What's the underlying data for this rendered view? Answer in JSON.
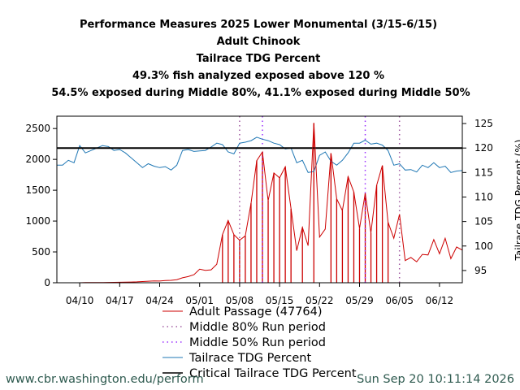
{
  "titles": [
    "Performance Measures 2025 Lower Monumental (3/15-6/15)",
    "Adult Chinook",
    "Tailrace TDG Percent",
    "49.3% fish analyzed exposed above 120 %",
    "54.5% exposed during Middle 80%, 41.1% exposed during Middle 50%"
  ],
  "footer": {
    "url": "www.cbr.washington.edu/perform",
    "timestamp": "Sun Sep 20 10:11:14 2026"
  },
  "legend": [
    {
      "label": "Adult Passage (47764)",
      "style": "solid",
      "color": "#cc0000"
    },
    {
      "label": "Middle 80% Run period",
      "style": "dotted",
      "color": "#a05aa0"
    },
    {
      "label": "Middle 50% Run period",
      "style": "dotted",
      "color": "#9b30ff"
    },
    {
      "label": "Tailrace TDG Percent",
      "style": "solid",
      "color": "#1f77b4"
    },
    {
      "label": "Critical Tailrace TDG Percent",
      "style": "solid",
      "color": "#000000"
    }
  ],
  "chart_data": {
    "type": "line",
    "x_axis": {
      "type": "date",
      "range": [
        "2025-04-06",
        "2025-06-16"
      ],
      "tick_labels": [
        "04/10",
        "04/17",
        "04/24",
        "05/01",
        "05/08",
        "05/15",
        "05/22",
        "05/29",
        "06/05",
        "06/12"
      ],
      "tick_dates": [
        "2025-04-10",
        "2025-04-17",
        "2025-04-24",
        "2025-05-01",
        "2025-05-08",
        "2025-05-15",
        "2025-05-22",
        "2025-05-29",
        "2025-06-05",
        "2025-06-12"
      ]
    },
    "y_left": {
      "ylim": [
        0,
        2700
      ],
      "ticks": [
        0,
        500,
        1000,
        1500,
        2000,
        2500
      ]
    },
    "y_right": {
      "label": "Tailrace TDG Percent (%)",
      "ylim": [
        92.5,
        126.5
      ],
      "ticks": [
        95,
        100,
        105,
        110,
        115,
        120,
        125
      ]
    },
    "series": [
      {
        "name": "Adult Passage (47764)",
        "axis": "left",
        "color": "#cc0000",
        "points": [
          [
            "2025-04-06",
            0
          ],
          [
            "2025-04-07",
            0
          ],
          [
            "2025-04-08",
            0
          ],
          [
            "2025-04-09",
            0
          ],
          [
            "2025-04-10",
            0
          ],
          [
            "2025-04-11",
            2
          ],
          [
            "2025-04-12",
            2
          ],
          [
            "2025-04-13",
            3
          ],
          [
            "2025-04-14",
            3
          ],
          [
            "2025-04-15",
            5
          ],
          [
            "2025-04-16",
            6
          ],
          [
            "2025-04-17",
            8
          ],
          [
            "2025-04-18",
            10
          ],
          [
            "2025-04-19",
            12
          ],
          [
            "2025-04-20",
            15
          ],
          [
            "2025-04-21",
            20
          ],
          [
            "2025-04-22",
            25
          ],
          [
            "2025-04-23",
            30
          ],
          [
            "2025-04-24",
            28
          ],
          [
            "2025-04-25",
            35
          ],
          [
            "2025-04-26",
            40
          ],
          [
            "2025-04-27",
            50
          ],
          [
            "2025-04-28",
            80
          ],
          [
            "2025-04-29",
            100
          ],
          [
            "2025-04-30",
            130
          ],
          [
            "2025-05-01",
            220
          ],
          [
            "2025-05-02",
            200
          ],
          [
            "2025-05-03",
            210
          ],
          [
            "2025-05-04",
            300
          ],
          [
            "2025-05-05",
            780
          ],
          [
            "2025-05-06",
            1010
          ],
          [
            "2025-05-07",
            780
          ],
          [
            "2025-05-08",
            690
          ],
          [
            "2025-05-09",
            760
          ],
          [
            "2025-05-10",
            1290
          ],
          [
            "2025-05-11",
            1980
          ],
          [
            "2025-05-12",
            2120
          ],
          [
            "2025-05-13",
            1330
          ],
          [
            "2025-05-14",
            1780
          ],
          [
            "2025-05-15",
            1700
          ],
          [
            "2025-05-16",
            1880
          ],
          [
            "2025-05-17",
            1200
          ],
          [
            "2025-05-18",
            520
          ],
          [
            "2025-05-19",
            900
          ],
          [
            "2025-05-20",
            600
          ],
          [
            "2025-05-21",
            2590
          ],
          [
            "2025-05-22",
            740
          ],
          [
            "2025-05-23",
            870
          ],
          [
            "2025-05-24",
            2100
          ],
          [
            "2025-05-25",
            1360
          ],
          [
            "2025-05-26",
            1170
          ],
          [
            "2025-05-27",
            1720
          ],
          [
            "2025-05-28",
            1470
          ],
          [
            "2025-05-29",
            880
          ],
          [
            "2025-05-30",
            1450
          ],
          [
            "2025-05-31",
            810
          ],
          [
            "2025-06-01",
            1580
          ],
          [
            "2025-06-02",
            1900
          ],
          [
            "2025-06-03",
            980
          ],
          [
            "2025-06-04",
            720
          ],
          [
            "2025-06-05",
            1110
          ],
          [
            "2025-06-06",
            360
          ],
          [
            "2025-06-07",
            410
          ],
          [
            "2025-06-08",
            340
          ],
          [
            "2025-06-09",
            460
          ],
          [
            "2025-06-10",
            450
          ],
          [
            "2025-06-11",
            700
          ],
          [
            "2025-06-12",
            470
          ],
          [
            "2025-06-13",
            720
          ],
          [
            "2025-06-14",
            390
          ],
          [
            "2025-06-15",
            580
          ],
          [
            "2025-06-16",
            530
          ]
        ]
      },
      {
        "name": "Tailrace TDG Percent",
        "axis": "right",
        "color": "#1f77b4",
        "points": [
          [
            "2025-04-06",
            116.5
          ],
          [
            "2025-04-07",
            116.5
          ],
          [
            "2025-04-08",
            117.5
          ],
          [
            "2025-04-09",
            117.0
          ],
          [
            "2025-04-10",
            120.5
          ],
          [
            "2025-04-11",
            119.0
          ],
          [
            "2025-04-12",
            119.5
          ],
          [
            "2025-04-13",
            120.0
          ],
          [
            "2025-04-14",
            120.5
          ],
          [
            "2025-04-15",
            120.3
          ],
          [
            "2025-04-16",
            119.5
          ],
          [
            "2025-04-17",
            119.7
          ],
          [
            "2025-04-18",
            119.0
          ],
          [
            "2025-04-19",
            118.0
          ],
          [
            "2025-04-20",
            117.0
          ],
          [
            "2025-04-21",
            116.0
          ],
          [
            "2025-04-22",
            116.8
          ],
          [
            "2025-04-23",
            116.3
          ],
          [
            "2025-04-24",
            116.0
          ],
          [
            "2025-04-25",
            116.2
          ],
          [
            "2025-04-26",
            115.5
          ],
          [
            "2025-04-27",
            116.5
          ],
          [
            "2025-04-28",
            119.5
          ],
          [
            "2025-04-29",
            119.7
          ],
          [
            "2025-04-30",
            119.3
          ],
          [
            "2025-05-01",
            119.4
          ],
          [
            "2025-05-02",
            119.5
          ],
          [
            "2025-05-03",
            120.2
          ],
          [
            "2025-05-04",
            121.0
          ],
          [
            "2025-05-05",
            120.7
          ],
          [
            "2025-05-06",
            119.2
          ],
          [
            "2025-05-07",
            118.8
          ],
          [
            "2025-05-08",
            121.0
          ],
          [
            "2025-05-09",
            121.2
          ],
          [
            "2025-05-10",
            121.5
          ],
          [
            "2025-05-11",
            122.2
          ],
          [
            "2025-05-12",
            121.8
          ],
          [
            "2025-05-13",
            121.5
          ],
          [
            "2025-05-14",
            121.0
          ],
          [
            "2025-05-15",
            120.7
          ],
          [
            "2025-05-16",
            119.8
          ],
          [
            "2025-05-17",
            120.0
          ],
          [
            "2025-05-18",
            117.0
          ],
          [
            "2025-05-19",
            117.5
          ],
          [
            "2025-05-20",
            115.0
          ],
          [
            "2025-05-21",
            115.2
          ],
          [
            "2025-05-22",
            118.5
          ],
          [
            "2025-05-23",
            119.2
          ],
          [
            "2025-05-24",
            117.3
          ],
          [
            "2025-05-25",
            116.5
          ],
          [
            "2025-05-26",
            117.5
          ],
          [
            "2025-05-27",
            119.0
          ],
          [
            "2025-05-28",
            121.0
          ],
          [
            "2025-05-29",
            121.0
          ],
          [
            "2025-05-30",
            121.6
          ],
          [
            "2025-05-31",
            120.8
          ],
          [
            "2025-06-01",
            121.0
          ],
          [
            "2025-06-02",
            120.6
          ],
          [
            "2025-06-03",
            119.5
          ],
          [
            "2025-06-04",
            116.5
          ],
          [
            "2025-06-05",
            116.8
          ],
          [
            "2025-06-06",
            115.5
          ],
          [
            "2025-06-07",
            115.6
          ],
          [
            "2025-06-08",
            115.1
          ],
          [
            "2025-06-09",
            116.5
          ],
          [
            "2025-06-10",
            116.0
          ],
          [
            "2025-06-11",
            117.0
          ],
          [
            "2025-06-12",
            116.0
          ],
          [
            "2025-06-13",
            116.3
          ],
          [
            "2025-06-14",
            115.0
          ],
          [
            "2025-06-15",
            115.3
          ],
          [
            "2025-06-16",
            115.4
          ]
        ]
      }
    ],
    "critical_tdg": {
      "name": "Critical Tailrace TDG Percent",
      "axis": "right",
      "value": 120,
      "color": "#000000"
    },
    "middle_80_dates": [
      "2025-05-08",
      "2025-06-05"
    ],
    "middle_50_dates": [
      "2025-05-12",
      "2025-05-30"
    ],
    "exceedance_bar_dates": [
      "2025-05-05",
      "2025-05-06",
      "2025-05-07",
      "2025-05-08",
      "2025-05-09",
      "2025-05-10",
      "2025-05-11",
      "2025-05-12",
      "2025-05-13",
      "2025-05-14",
      "2025-05-15",
      "2025-05-16",
      "2025-05-17",
      "2025-05-19",
      "2025-05-21",
      "2025-05-24",
      "2025-05-25",
      "2025-05-26",
      "2025-05-27",
      "2025-05-28",
      "2025-05-29",
      "2025-05-30",
      "2025-05-31",
      "2025-06-01",
      "2025-06-02",
      "2025-06-03"
    ],
    "legend_placement": "bottom-center",
    "grid": false
  }
}
